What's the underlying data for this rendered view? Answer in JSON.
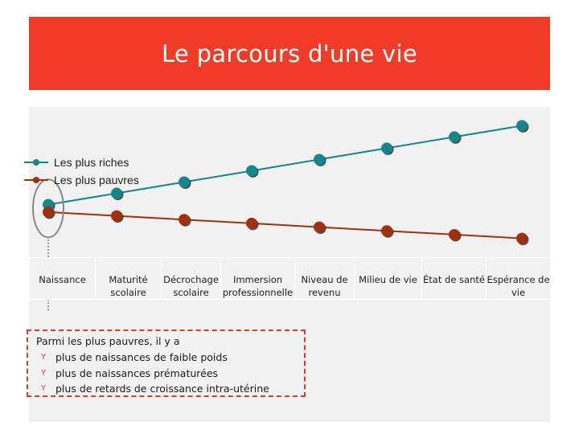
{
  "title": "Le parcours d'une vie",
  "colors": {
    "riches": "#16868d",
    "pauvres": "#a0300f",
    "title_band": "#ef3b27",
    "highlight": "#e23a2a"
  },
  "legend": {
    "riches": "Les plus riches",
    "pauvres": "Les plus pauvres"
  },
  "stages": [
    "Naissance",
    "Maturité scolaire",
    "Décrochage scolaire",
    "Immersion professionnelle",
    "Niveau de revenu",
    "Milieu de vie",
    "État de santé",
    "Espérance de vie"
  ],
  "chart_data": {
    "type": "line",
    "categories": [
      "Naissance",
      "Maturité scolaire",
      "Décrochage scolaire",
      "Immersion professionnelle",
      "Niveau de revenu",
      "Milieu de vie",
      "État de santé",
      "Espérance de vie"
    ],
    "series": [
      {
        "name": "Les plus riches",
        "values": [
          2,
          2.3,
          2.6,
          2.9,
          3.2,
          3.5,
          3.8,
          4.1
        ]
      },
      {
        "name": "Les plus pauvres",
        "values": [
          1.8,
          1.7,
          1.6,
          1.5,
          1.4,
          1.3,
          1.2,
          1.1
        ]
      }
    ],
    "ylim": [
      0.6,
      4.6
    ],
    "grid": false,
    "legend_position": "top-left"
  },
  "note": {
    "lead": "Parmi les plus pauvres, il y a",
    "items": [
      "plus de naissances de faible poids",
      "plus de naissances prématurées",
      "plus de retards de croissance intra-utérine"
    ]
  }
}
